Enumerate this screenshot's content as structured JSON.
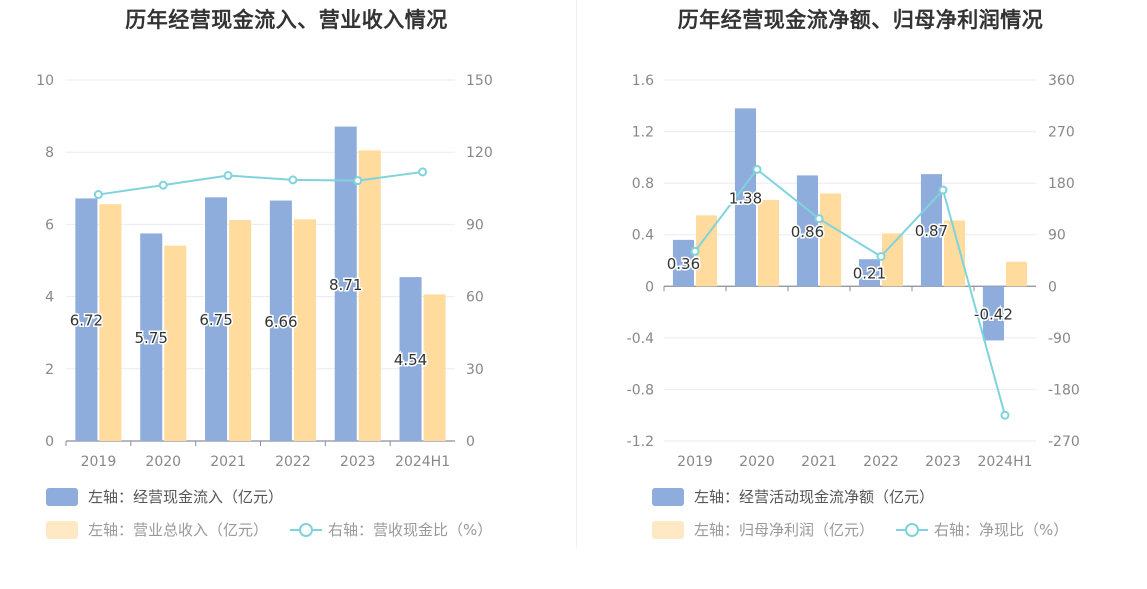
{
  "colors": {
    "bar1": "#8eaddc",
    "bar2": "#ffdb9e",
    "line": "#7fd3dc",
    "grid": "#e8ebf2",
    "axis_text": "#888888",
    "label_text": "#333333"
  },
  "chart_data": [
    {
      "type": "bar",
      "title": "历年经营现金流入、营业收入情况",
      "categories": [
        "2019",
        "2020",
        "2021",
        "2022",
        "2023",
        "2024H1"
      ],
      "left_axis": {
        "ylim": [
          0,
          10
        ],
        "ticks": [
          "0",
          "2",
          "4",
          "6",
          "8",
          "10"
        ]
      },
      "right_axis": {
        "ylim": [
          0,
          150
        ],
        "ticks": [
          "0",
          "30",
          "60",
          "90",
          "120",
          "150"
        ]
      },
      "series": [
        {
          "name": "左轴：经营现金流入（亿元）",
          "kind": "bar",
          "axis": "left",
          "values": [
            6.72,
            5.75,
            6.75,
            6.66,
            8.71,
            4.54
          ],
          "labels": [
            "6.72",
            "5.75",
            "6.75",
            "6.66",
            "8.71",
            "4.54"
          ]
        },
        {
          "name": "左轴：营业总收入（亿元）",
          "kind": "bar",
          "axis": "left",
          "values": [
            6.56,
            5.41,
            6.12,
            6.14,
            8.05,
            4.06
          ]
        },
        {
          "name": "右轴：营收现金比（%）",
          "kind": "line",
          "axis": "right",
          "values": [
            102.4,
            106.3,
            110.3,
            108.5,
            108.2,
            111.8
          ]
        }
      ]
    },
    {
      "type": "bar",
      "title": "历年经营现金流净额、归母净利润情况",
      "categories": [
        "2019",
        "2020",
        "2021",
        "2022",
        "2023",
        "2024H1"
      ],
      "left_axis": {
        "ylim": [
          -1.2,
          1.6
        ],
        "ticks": [
          "-1.2",
          "-0.8",
          "-0.4",
          "0",
          "0.4",
          "0.8",
          "1.2",
          "1.6"
        ]
      },
      "right_axis": {
        "ylim": [
          -270,
          360
        ],
        "ticks": [
          "-270",
          "-180",
          "-90",
          "0",
          "90",
          "180",
          "270",
          "360"
        ]
      },
      "series": [
        {
          "name": "左轴：经营活动现金流净额（亿元）",
          "kind": "bar",
          "axis": "left",
          "values": [
            0.36,
            1.38,
            0.86,
            0.21,
            0.87,
            -0.42
          ],
          "labels": [
            "0.36",
            "1.38",
            "0.86",
            "0.21",
            "0.87",
            "-0.42"
          ]
        },
        {
          "name": "左轴：归母净利润（亿元）",
          "kind": "bar",
          "axis": "left",
          "values": [
            0.55,
            0.67,
            0.72,
            0.41,
            0.51,
            0.19
          ]
        },
        {
          "name": "右轴：净现比（%）",
          "kind": "line",
          "axis": "right",
          "values": [
            61,
            204,
            118,
            52,
            168,
            -225
          ]
        }
      ]
    }
  ]
}
